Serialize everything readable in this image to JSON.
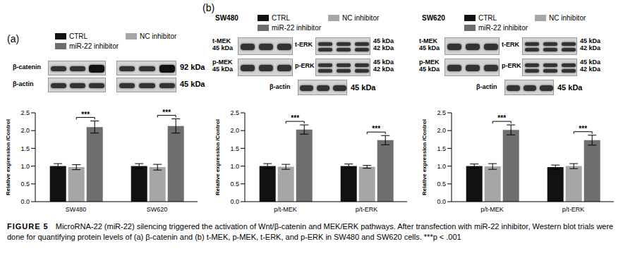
{
  "chart_data": [
    {
      "type": "bar",
      "panel": "(a)",
      "y_label": "Relative expression /Control",
      "categories": [
        "SW480",
        "SW620"
      ],
      "series": [
        {
          "name": "CTRL",
          "color": "#111111",
          "values": [
            1.0,
            1.0
          ],
          "errors": [
            0.07,
            0.07
          ]
        },
        {
          "name": "NC inhibitor",
          "color": "#a6a6a6",
          "values": [
            0.97,
            0.97
          ],
          "errors": [
            0.07,
            0.08
          ]
        },
        {
          "name": "miR-22 inhibitor",
          "color": "#6e6e6e",
          "values": [
            2.1,
            2.13
          ],
          "errors": [
            0.17,
            0.2
          ]
        }
      ],
      "ylim": [
        0,
        2.5
      ],
      "yticks": [
        {
          "value": 0,
          "label": "0.0"
        },
        0.5,
        {
          "value": 1,
          "label": "1.0"
        },
        1.5,
        {
          "value": 2,
          "label": "2.0"
        },
        2.5
      ],
      "grid": false,
      "legend": "top",
      "significance": {
        "pair": [
          "NC inhibitor",
          "miR-22 inhibitor"
        ],
        "labels": [
          "***",
          "***"
        ]
      }
    },
    {
      "type": "bar",
      "panel": "(b)",
      "title": "SW480",
      "y_label": "Relative expression /Control",
      "categories": [
        "p/t-MEK",
        "p/t-ERK"
      ],
      "series": [
        {
          "name": "CTRL",
          "color": "#111111",
          "values": [
            1.0,
            1.0
          ],
          "errors": [
            0.07,
            0.06
          ]
        },
        {
          "name": "NC inhibitor",
          "color": "#a6a6a6",
          "values": [
            0.98,
            0.98
          ],
          "errors": [
            0.07,
            0.04
          ]
        },
        {
          "name": "miR-22 inhibitor",
          "color": "#6e6e6e",
          "values": [
            2.03,
            1.73
          ],
          "errors": [
            0.13,
            0.13
          ]
        }
      ],
      "ylim": [
        0,
        2.5
      ],
      "yticks": [
        {
          "value": 0,
          "label": "0.0"
        },
        0.5,
        {
          "value": 1,
          "label": "1.0"
        },
        1.5,
        {
          "value": 2,
          "label": "2.0"
        },
        2.5
      ],
      "grid": false,
      "legend": "top",
      "significance": {
        "pair": [
          "NC inhibitor",
          "miR-22 inhibitor"
        ],
        "labels": [
          "***",
          "***"
        ]
      }
    },
    {
      "type": "bar",
      "title": "SW620",
      "y_label": "Relative expression /Control",
      "categories": [
        "p/t-MEK",
        "p/t-ERK"
      ],
      "series": [
        {
          "name": "CTRL",
          "color": "#111111",
          "values": [
            1.0,
            0.97
          ],
          "errors": [
            0.06,
            0.06
          ]
        },
        {
          "name": "NC inhibitor",
          "color": "#a6a6a6",
          "values": [
            0.99,
            1.0
          ],
          "errors": [
            0.08,
            0.07
          ]
        },
        {
          "name": "miR-22 inhibitor",
          "color": "#6e6e6e",
          "values": [
            2.02,
            1.73
          ],
          "errors": [
            0.14,
            0.14
          ]
        }
      ],
      "ylim": [
        0,
        2.5
      ],
      "yticks": [
        {
          "value": 0,
          "label": "0.0"
        },
        0.5,
        {
          "value": 1,
          "label": "1.0"
        },
        1.5,
        {
          "value": 2,
          "label": "2.0"
        },
        2.5
      ],
      "grid": false,
      "legend": "top",
      "significance": {
        "pair": [
          "NC inhibitor",
          "miR-22 inhibitor"
        ],
        "labels": [
          "***",
          "***"
        ]
      }
    }
  ],
  "blots": [
    {
      "rows": [
        {
          "left": [
            "β-catenin"
          ],
          "right": [
            "92 kDa"
          ]
        },
        {
          "left": [
            "β-actin"
          ],
          "right": [
            "45 kDa"
          ]
        }
      ]
    },
    {
      "rows": [
        {
          "left": [
            "t-MEK",
            "45 kDa"
          ],
          "middle": "t-ERK",
          "right": [
            "45 kDa",
            "42 kDa"
          ]
        },
        {
          "left": [
            "p-MEK",
            "45 kDa"
          ],
          "middle": "p-ERK",
          "right": [
            "45 kDa",
            "42 kDa"
          ]
        }
      ],
      "loading": {
        "left": "β-actin",
        "right": "45 kDa"
      }
    },
    {
      "rows": [
        {
          "left": [
            "t-MEK",
            "45 kDa"
          ],
          "middle": "t-ERK",
          "right": [
            "45 kDa",
            "42 kDa"
          ]
        },
        {
          "left": [
            "p-MEK",
            "45 kDa"
          ],
          "middle": "p-ERK",
          "right": [
            "45 kDa",
            "42 kDa"
          ]
        }
      ],
      "loading": {
        "left": "β-actin",
        "right": "45 kDa"
      }
    }
  ],
  "caption": {
    "label": "FIGURE 5",
    "text": "MicroRNA-22 (miR-22) silencing triggered the activation of Wnt/β-catenin and MEK/ERK pathways. After transfection with miR-22 inhibitor, Western blot trials were done for quantifying protein levels of (a) β-catenin and (b) t-MEK, p-MEK, t-ERK, and p-ERK in SW480 and SW620 cells. ***p < .001"
  }
}
